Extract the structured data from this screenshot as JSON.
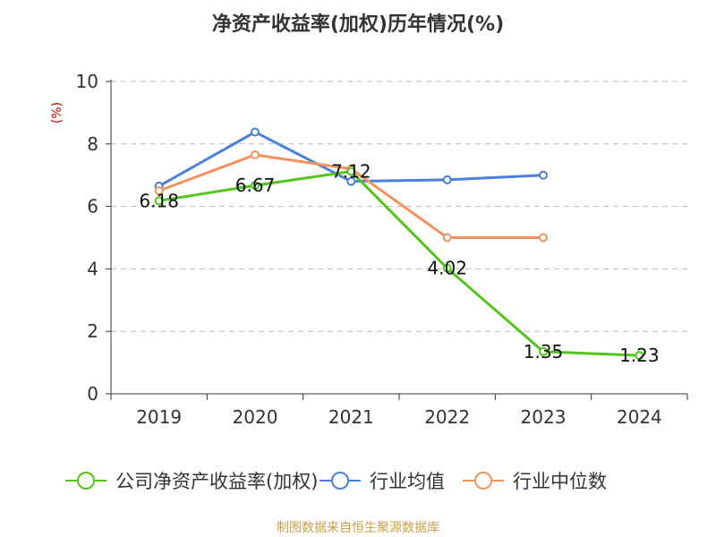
{
  "chart_data": {
    "type": "line",
    "title": "净资产收益率(加权)历年情况(%)",
    "ylabel": "(%)",
    "xlabel": "",
    "ylim": [
      0,
      10
    ],
    "yticks": [
      0,
      2,
      4,
      6,
      8,
      10
    ],
    "categories": [
      "2019",
      "2020",
      "2021",
      "2022",
      "2023",
      "2024"
    ],
    "grid": true,
    "legend_position": "bottom",
    "series": [
      {
        "name": "公司净资产收益率(加权)",
        "color": "#52c41a",
        "values": [
          6.18,
          6.67,
          7.12,
          4.02,
          1.35,
          1.23
        ],
        "labels": [
          "6.18",
          "6.67",
          "7.12",
          "4.02",
          "1.35",
          "1.23"
        ]
      },
      {
        "name": "行业均值",
        "color": "#4a7fdc",
        "values": [
          6.65,
          8.38,
          6.8,
          6.85,
          7.0,
          null
        ]
      },
      {
        "name": "行业中位数",
        "color": "#f4925e",
        "values": [
          6.5,
          7.65,
          7.2,
          5.0,
          5.0,
          null
        ]
      }
    ],
    "source": "制图数据来自恒生聚源数据库"
  }
}
